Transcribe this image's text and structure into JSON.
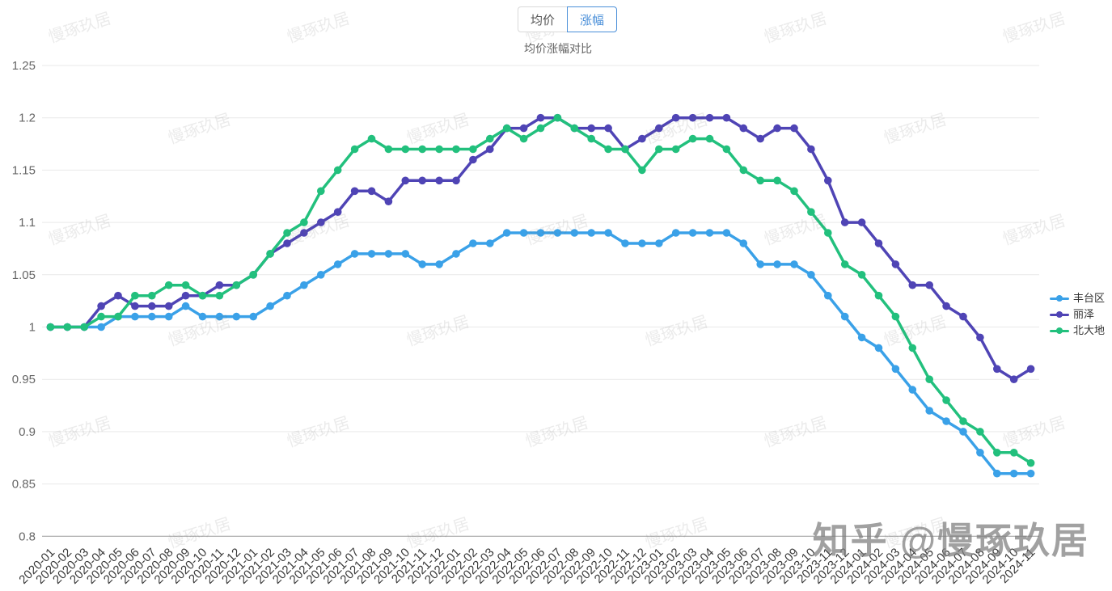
{
  "tabs": {
    "average_price": "均价",
    "change": "涨幅"
  },
  "title": "均价涨幅对比",
  "watermark": {
    "tile_text": "慢琢玖居",
    "credit": "知乎 @慢琢玖居"
  },
  "chart_data": {
    "type": "line",
    "x": [
      "2020-01",
      "2020-02",
      "2020-03",
      "2020-04",
      "2020-05",
      "2020-06",
      "2020-07",
      "2020-08",
      "2020-09",
      "2020-10",
      "2020-11",
      "2020-12",
      "2021-01",
      "2021-02",
      "2021-03",
      "2021-04",
      "2021-05",
      "2021-06",
      "2021-07",
      "2021-08",
      "2021-09",
      "2021-10",
      "2021-11",
      "2021-12",
      "2022-01",
      "2022-02",
      "2022-03",
      "2022-04",
      "2022-05",
      "2022-06",
      "2022-07",
      "2022-08",
      "2022-09",
      "2022-10",
      "2022-11",
      "2022-12",
      "2023-01",
      "2023-02",
      "2023-03",
      "2023-04",
      "2023-05",
      "2023-06",
      "2023-07",
      "2023-08",
      "2023-09",
      "2023-10",
      "2023-11",
      "2023-12",
      "2024-01",
      "2024-02",
      "2024-03",
      "2024-04",
      "2024-05",
      "2024-06",
      "2024-07",
      "2024-08",
      "2024-09",
      "2024-10",
      "2024-11"
    ],
    "series": [
      {
        "name": "丰台区",
        "color": "#3aa1e8",
        "values": [
          1.0,
          1.0,
          1.0,
          1.0,
          1.01,
          1.01,
          1.01,
          1.01,
          1.02,
          1.01,
          1.01,
          1.01,
          1.01,
          1.02,
          1.03,
          1.04,
          1.05,
          1.06,
          1.07,
          1.07,
          1.07,
          1.07,
          1.06,
          1.06,
          1.07,
          1.08,
          1.08,
          1.09,
          1.09,
          1.09,
          1.09,
          1.09,
          1.09,
          1.09,
          1.08,
          1.08,
          1.08,
          1.09,
          1.09,
          1.09,
          1.09,
          1.08,
          1.06,
          1.06,
          1.06,
          1.05,
          1.03,
          1.01,
          0.99,
          0.98,
          0.96,
          0.94,
          0.92,
          0.91,
          0.9,
          0.88,
          0.86,
          0.86,
          0.86
        ]
      },
      {
        "name": "丽泽",
        "color": "#4f44b5",
        "values": [
          1.0,
          1.0,
          1.0,
          1.02,
          1.03,
          1.02,
          1.02,
          1.02,
          1.03,
          1.03,
          1.04,
          1.04,
          1.05,
          1.07,
          1.08,
          1.09,
          1.1,
          1.11,
          1.13,
          1.13,
          1.12,
          1.14,
          1.14,
          1.14,
          1.14,
          1.16,
          1.17,
          1.19,
          1.19,
          1.2,
          1.2,
          1.19,
          1.19,
          1.19,
          1.17,
          1.18,
          1.19,
          1.2,
          1.2,
          1.2,
          1.2,
          1.19,
          1.18,
          1.19,
          1.19,
          1.17,
          1.14,
          1.1,
          1.1,
          1.08,
          1.06,
          1.04,
          1.04,
          1.02,
          1.01,
          0.99,
          0.96,
          0.95,
          0.96
        ]
      },
      {
        "name": "北大地",
        "color": "#22c07d",
        "values": [
          1.0,
          1.0,
          1.0,
          1.01,
          1.01,
          1.03,
          1.03,
          1.04,
          1.04,
          1.03,
          1.03,
          1.04,
          1.05,
          1.07,
          1.09,
          1.1,
          1.13,
          1.15,
          1.17,
          1.18,
          1.17,
          1.17,
          1.17,
          1.17,
          1.17,
          1.17,
          1.18,
          1.19,
          1.18,
          1.19,
          1.2,
          1.19,
          1.18,
          1.17,
          1.17,
          1.15,
          1.17,
          1.17,
          1.18,
          1.18,
          1.17,
          1.15,
          1.14,
          1.14,
          1.13,
          1.11,
          1.09,
          1.06,
          1.05,
          1.03,
          1.01,
          0.98,
          0.95,
          0.93,
          0.91,
          0.9,
          0.88,
          0.88,
          0.87
        ]
      }
    ],
    "ylim": [
      0.8,
      1.25
    ],
    "yticks": [
      0.8,
      0.85,
      0.9,
      0.95,
      1,
      1.05,
      1.1,
      1.15,
      1.2,
      1.25
    ],
    "grid": true,
    "legend_position": "right",
    "xlabel": "",
    "ylabel": ""
  }
}
